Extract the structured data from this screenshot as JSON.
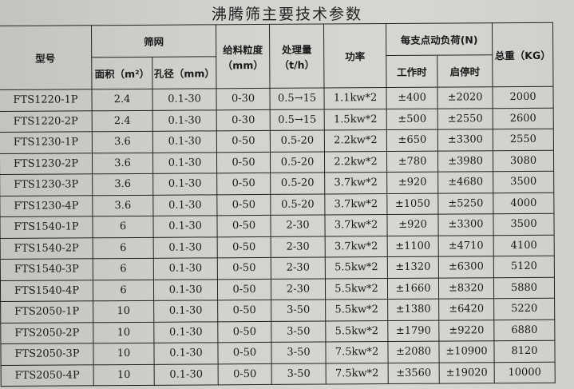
{
  "title": "沸腾筛主要技术参数",
  "headers": {
    "model": "型号",
    "screen": "筛网",
    "area": "面积（m²）",
    "aperture": "孔径（mm）",
    "feed_size": "给料粒度（mm）",
    "capacity": "处理量（t/h）",
    "power": "功率",
    "load": "每支点动负荷(N)",
    "working": "工作时",
    "start_stop": "启停时",
    "weight": "总重（KG）"
  },
  "rows": [
    [
      "FTS1220-1P",
      "2.4",
      "0.1-30",
      "0-30",
      "0.5→15",
      "1.1kw*2",
      "±400",
      "±2020",
      "2000"
    ],
    [
      "FTS1220-2P",
      "2.4",
      "0.1-30",
      "0-30",
      "0.5→15",
      "1.5kw*2",
      "±500",
      "±2550",
      "2600"
    ],
    [
      "FTS1230-1P",
      "3.6",
      "0.1-30",
      "0-50",
      "0.5-20",
      "2.2kw*2",
      "±650",
      "±3300",
      "2550"
    ],
    [
      "FTS1230-2P",
      "3.6",
      "0.1-30",
      "0-50",
      "0.5-20",
      "2.2kw*2",
      "±780",
      "±3980",
      "3080"
    ],
    [
      "FTS1230-3P",
      "3.6",
      "0.1-30",
      "0-50",
      "0.5-20",
      "3.7kw*2",
      "±920",
      "±4680",
      "3500"
    ],
    [
      "FTS1230-4P",
      "3.6",
      "0.1-30",
      "0-50",
      "0.5-20",
      "3.7kw*2",
      "±1050",
      "±5250",
      "4000"
    ],
    [
      "FTS1540-1P",
      "6",
      "0.1-30",
      "0-50",
      "2-30",
      "3.7kw*2",
      "±920",
      "±3300",
      "3500"
    ],
    [
      "FTS1540-2P",
      "6",
      "0.1-30",
      "0-50",
      "2-30",
      "3.7kw*2",
      "±1100",
      "±4710",
      "4100"
    ],
    [
      "FTS1540-3P",
      "6",
      "0.1-30",
      "0-50",
      "2-30",
      "5.5kw*2",
      "±1320",
      "±6300",
      "5120"
    ],
    [
      "FTS1540-4P",
      "6",
      "0.1-30",
      "0-50",
      "2-30",
      "5.5kw*2",
      "±1660",
      "±8320",
      "5880"
    ],
    [
      "FTS2050-1P",
      "10",
      "0.1-30",
      "0-50",
      "3-50",
      "5.5kw*2",
      "±1380",
      "±6420",
      "5220"
    ],
    [
      "FTS2050-2P",
      "10",
      "0.1-30",
      "0-50",
      "3-50",
      "5.5kw*2",
      "±1790",
      "±9220",
      "6880"
    ],
    [
      "FTS2050-3P",
      "10",
      "0.1-30",
      "0-50",
      "3-50",
      "7.5kw*2",
      "±2080",
      "±10900",
      "8120"
    ],
    [
      "FTS2050-4P",
      "10",
      "0.1-30",
      "0-50",
      "3-50",
      "7.5kw*2",
      "±3560",
      "±19020",
      "10000"
    ]
  ]
}
